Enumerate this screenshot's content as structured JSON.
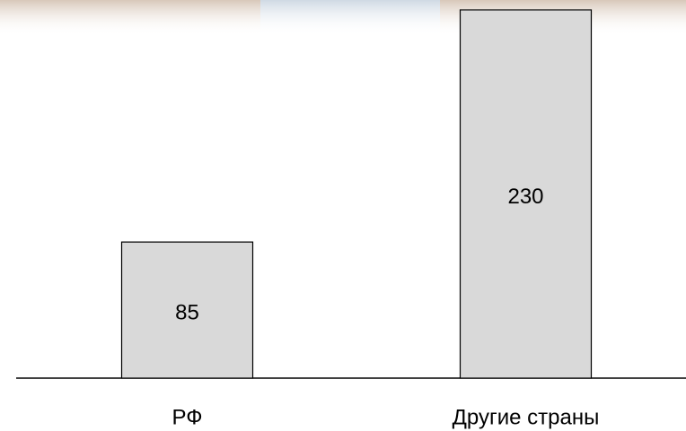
{
  "chart_data": {
    "type": "bar",
    "categories": [
      "РФ",
      "Другие страны"
    ],
    "values": [
      85,
      230
    ],
    "color": "#d9d9d9"
  }
}
